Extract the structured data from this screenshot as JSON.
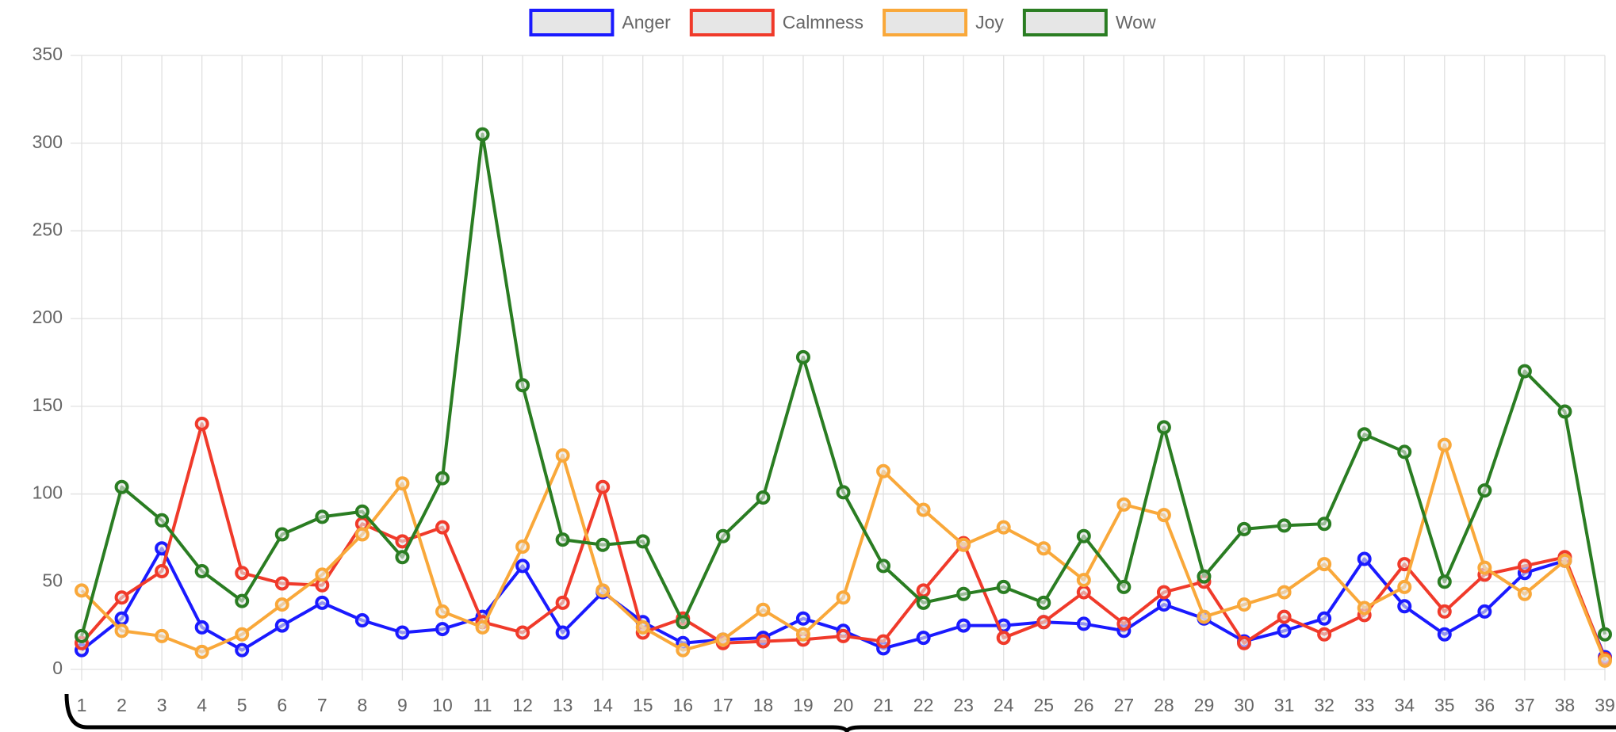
{
  "chart_data": {
    "type": "line",
    "categories": [
      "1",
      "2",
      "3",
      "4",
      "5",
      "6",
      "7",
      "8",
      "9",
      "10",
      "11",
      "12",
      "13",
      "14",
      "15",
      "16",
      "17",
      "18",
      "19",
      "20",
      "21",
      "22",
      "23",
      "24",
      "25",
      "26",
      "27",
      "28",
      "29",
      "30",
      "31",
      "32",
      "33",
      "34",
      "35",
      "36",
      "37",
      "38",
      "39"
    ],
    "series": [
      {
        "name": "Anger",
        "color": "#1a1aff",
        "values": [
          11,
          29,
          69,
          24,
          11,
          25,
          38,
          28,
          21,
          23,
          30,
          59,
          21,
          44,
          27,
          15,
          17,
          18,
          29,
          22,
          12,
          18,
          25,
          25,
          27,
          26,
          22,
          37,
          29,
          16,
          22,
          29,
          63,
          36,
          20,
          33,
          55,
          62,
          7
        ]
      },
      {
        "name": "Calmness",
        "color": "#f03a2a",
        "values": [
          15,
          41,
          56,
          140,
          55,
          49,
          48,
          83,
          73,
          81,
          27,
          21,
          38,
          104,
          21,
          29,
          15,
          16,
          17,
          19,
          16,
          45,
          72,
          18,
          27,
          44,
          26,
          44,
          50,
          15,
          30,
          20,
          31,
          60,
          33,
          54,
          59,
          64,
          6
        ]
      },
      {
        "name": "Joy",
        "color": "#f9a83a",
        "values": [
          45,
          22,
          19,
          10,
          20,
          37,
          54,
          77,
          106,
          33,
          24,
          70,
          122,
          45,
          24,
          11,
          17,
          34,
          20,
          41,
          113,
          91,
          71,
          81,
          69,
          51,
          94,
          88,
          30,
          37,
          44,
          60,
          35,
          47,
          128,
          58,
          43,
          62,
          5
        ]
      },
      {
        "name": "Wow",
        "color": "#2a7d22",
        "values": [
          19,
          104,
          85,
          56,
          39,
          77,
          87,
          90,
          64,
          109,
          305,
          162,
          74,
          71,
          73,
          27,
          76,
          98,
          178,
          101,
          59,
          38,
          43,
          47,
          38,
          76,
          47,
          138,
          53,
          80,
          82,
          83,
          134,
          124,
          50,
          102,
          170,
          147,
          20
        ]
      }
    ],
    "ylim": [
      0,
      350
    ],
    "yticks": [
      0,
      50,
      100,
      150,
      200,
      250,
      300,
      350
    ],
    "grid": true,
    "legend": "top"
  }
}
